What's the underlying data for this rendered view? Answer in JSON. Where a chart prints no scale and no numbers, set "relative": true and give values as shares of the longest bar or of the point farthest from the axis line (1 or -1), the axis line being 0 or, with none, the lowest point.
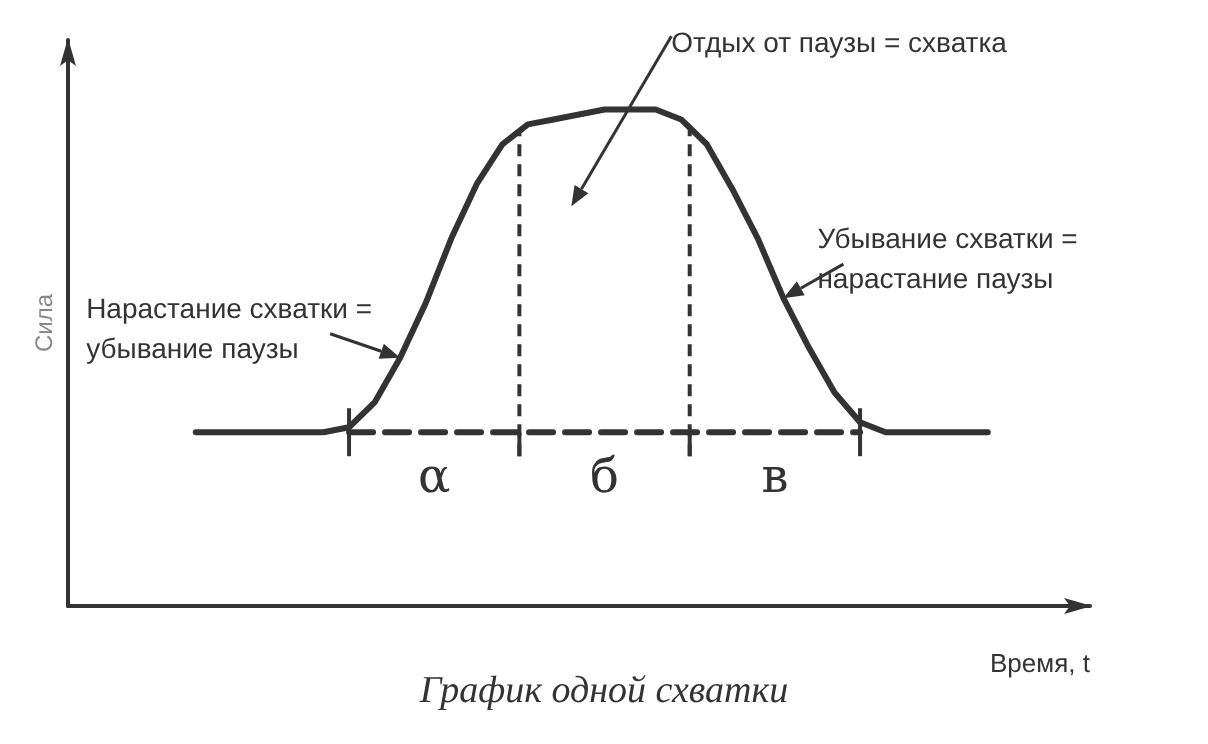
{
  "chart_data": {
    "type": "line",
    "relative": true,
    "title": "График одной схватки",
    "xlabel": "Время, t",
    "ylabel": "Сила",
    "grid": false,
    "marker": "none",
    "categories": [
      null,
      null,
      null,
      null,
      null,
      null,
      null,
      null,
      null,
      null,
      null,
      null,
      null,
      null,
      null,
      null,
      null,
      null,
      null,
      null,
      null,
      null,
      null,
      null,
      null,
      null,
      null,
      null,
      null,
      null,
      null,
      null,
      null,
      null,
      null,
      null,
      null,
      null,
      null,
      null,
      null
    ],
    "series": [
      {
        "color": "#333333",
        "line_style": "solid",
        "values": [
          null,
          null,
          null,
          null,
          null,
          0.35,
          0.35,
          0.35,
          0.35,
          0.35,
          0.35,
          0.36,
          0.41,
          0.5,
          0.61,
          0.74,
          0.85,
          0.93,
          0.97,
          0.98,
          0.99,
          1.0,
          1.0,
          1.0,
          0.98,
          0.93,
          0.84,
          0.74,
          0.62,
          0.52,
          0.43,
          0.37,
          0.35,
          0.35,
          0.35,
          0.35,
          0.35,
          null,
          null,
          null,
          null
        ]
      },
      {
        "color": "#333333",
        "line_style": "dashed",
        "values": [
          null,
          null,
          null,
          null,
          null,
          null,
          null,
          null,
          null,
          null,
          null,
          0.35,
          0.35,
          0.35,
          0.35,
          0.35,
          0.35,
          0.35,
          0.35,
          0.35,
          0.35,
          0.35,
          0.35,
          0.35,
          0.35,
          0.35,
          0.35,
          0.35,
          0.35,
          0.35,
          0.35,
          0.35,
          null,
          null,
          null,
          null,
          null,
          null,
          null,
          null,
          null
        ]
      }
    ],
    "annotations": [
      "Отдых от паузы = схватка",
      "Нарастание схватки =\nубывание паузы",
      "Убывание схватки =\nнарастание паузы",
      "α",
      "б",
      "в"
    ]
  }
}
